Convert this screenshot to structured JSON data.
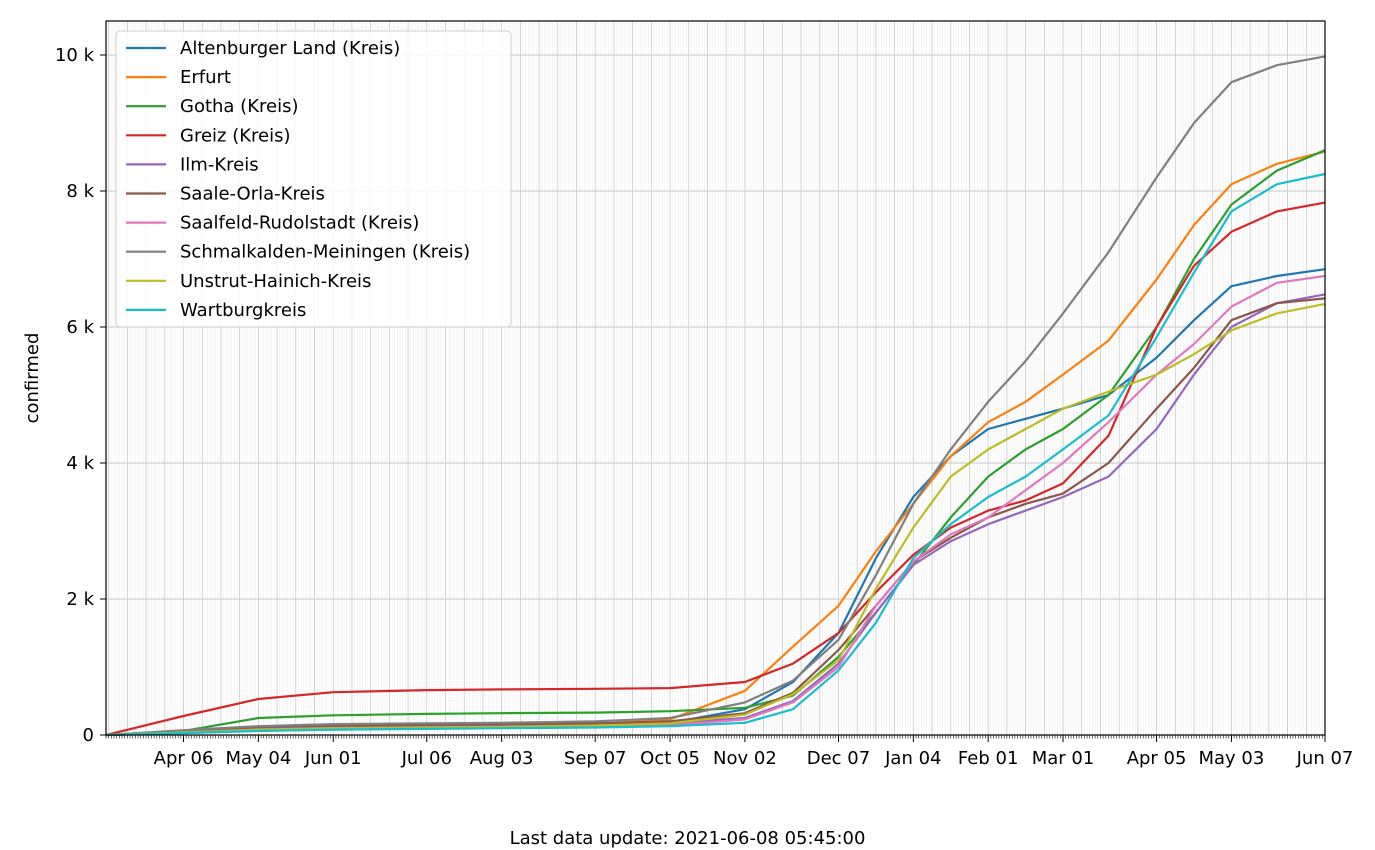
{
  "footer": {
    "label": "Last data update:",
    "timestamp": "2021-06-08 05:45:00"
  },
  "chart_data": {
    "type": "line",
    "title": "",
    "xlabel": "",
    "ylabel": "confirmed",
    "x_type": "date",
    "xlim": [
      "2020-03-08",
      "2021-06-07"
    ],
    "ylim": [
      0,
      10500
    ],
    "x_ticks": [
      {
        "date": "2020-04-06",
        "label": "Apr 06"
      },
      {
        "date": "2020-05-04",
        "label": "May 04"
      },
      {
        "date": "2020-06-01",
        "label": "Jun 01"
      },
      {
        "date": "2020-07-06",
        "label": "Jul 06"
      },
      {
        "date": "2020-08-03",
        "label": "Aug 03"
      },
      {
        "date": "2020-09-07",
        "label": "Sep 07"
      },
      {
        "date": "2020-10-05",
        "label": "Oct 05"
      },
      {
        "date": "2020-11-02",
        "label": "Nov 02"
      },
      {
        "date": "2020-12-07",
        "label": "Dec 07"
      },
      {
        "date": "2021-01-04",
        "label": "Jan 04"
      },
      {
        "date": "2021-02-01",
        "label": "Feb 01"
      },
      {
        "date": "2021-03-01",
        "label": "Mar 01"
      },
      {
        "date": "2021-04-05",
        "label": "Apr 05"
      },
      {
        "date": "2021-05-03",
        "label": "May 03"
      },
      {
        "date": "2021-06-07",
        "label": "Jun 07"
      }
    ],
    "y_ticks": [
      {
        "value": 0,
        "label": "0"
      },
      {
        "value": 2000,
        "label": "2 k"
      },
      {
        "value": 4000,
        "label": "4 k"
      },
      {
        "value": 6000,
        "label": "6 k"
      },
      {
        "value": 8000,
        "label": "8 k"
      },
      {
        "value": 10000,
        "label": "10 k"
      }
    ],
    "grid": true,
    "legend": "top-left",
    "x": [
      "2020-03-08",
      "2020-04-06",
      "2020-05-04",
      "2020-06-01",
      "2020-07-06",
      "2020-08-03",
      "2020-09-07",
      "2020-10-05",
      "2020-11-02",
      "2020-11-20",
      "2020-12-07",
      "2020-12-21",
      "2021-01-04",
      "2021-01-18",
      "2021-02-01",
      "2021-02-15",
      "2021-03-01",
      "2021-03-18",
      "2021-04-05",
      "2021-04-19",
      "2021-05-03",
      "2021-05-20",
      "2021-06-07"
    ],
    "series": [
      {
        "name": "Altenburger Land (Kreis)",
        "color": "#1f77b4",
        "values": [
          0,
          40,
          90,
          110,
          130,
          140,
          160,
          180,
          380,
          780,
          1500,
          2600,
          3500,
          4100,
          4500,
          4650,
          4800,
          5000,
          5550,
          6100,
          6600,
          6750,
          6850
        ]
      },
      {
        "name": "Erfurt",
        "color": "#ff7f0e",
        "values": [
          0,
          30,
          60,
          80,
          100,
          120,
          160,
          230,
          650,
          1300,
          1900,
          2700,
          3400,
          4100,
          4600,
          4900,
          5300,
          5800,
          6700,
          7500,
          8100,
          8400,
          8580
        ]
      },
      {
        "name": "Gotha (Kreis)",
        "color": "#2ca02c",
        "values": [
          0,
          60,
          250,
          290,
          310,
          320,
          330,
          350,
          400,
          580,
          1150,
          1800,
          2500,
          3200,
          3800,
          4200,
          4500,
          5000,
          6000,
          7000,
          7800,
          8300,
          8600
        ]
      },
      {
        "name": "Greiz (Kreis)",
        "color": "#d62728",
        "values": [
          0,
          280,
          530,
          630,
          660,
          670,
          680,
          690,
          780,
          1050,
          1500,
          2100,
          2650,
          3050,
          3300,
          3450,
          3700,
          4400,
          6000,
          6900,
          7400,
          7700,
          7830
        ]
      },
      {
        "name": "Ilm-Kreis",
        "color": "#9467bd",
        "values": [
          0,
          50,
          100,
          120,
          130,
          140,
          150,
          170,
          250,
          500,
          1050,
          1800,
          2500,
          2850,
          3100,
          3300,
          3500,
          3800,
          4500,
          5300,
          6000,
          6350,
          6480
        ]
      },
      {
        "name": "Saale-Orla-Kreis",
        "color": "#8c564b",
        "values": [
          0,
          60,
          120,
          140,
          150,
          160,
          170,
          200,
          320,
          620,
          1250,
          1900,
          2550,
          2900,
          3200,
          3400,
          3550,
          4000,
          4800,
          5400,
          6100,
          6350,
          6420
        ]
      },
      {
        "name": "Saalfeld-Rudolstadt (Kreis)",
        "color": "#e377c2",
        "values": [
          0,
          40,
          70,
          90,
          100,
          110,
          120,
          140,
          230,
          480,
          1000,
          1900,
          2550,
          2950,
          3200,
          3600,
          4000,
          4600,
          5300,
          5750,
          6300,
          6650,
          6750
        ]
      },
      {
        "name": "Schmalkalden-Meiningen (Kreis)",
        "color": "#7f7f7f",
        "values": [
          0,
          70,
          130,
          160,
          170,
          180,
          200,
          250,
          480,
          800,
          1400,
          2350,
          3400,
          4200,
          4900,
          5500,
          6200,
          7100,
          8200,
          9000,
          9600,
          9850,
          9980
        ]
      },
      {
        "name": "Unstrut-Hainich-Kreis",
        "color": "#bcbd22",
        "values": [
          0,
          40,
          80,
          100,
          110,
          120,
          140,
          170,
          300,
          600,
          1100,
          2150,
          3050,
          3800,
          4200,
          4500,
          4800,
          5050,
          5300,
          5600,
          5950,
          6200,
          6340
        ]
      },
      {
        "name": "Wartburgkreis",
        "color": "#17becf",
        "values": [
          0,
          30,
          60,
          80,
          90,
          100,
          110,
          130,
          180,
          380,
          950,
          1650,
          2600,
          3100,
          3500,
          3800,
          4200,
          4700,
          5850,
          6800,
          7700,
          8100,
          8250
        ]
      }
    ]
  }
}
